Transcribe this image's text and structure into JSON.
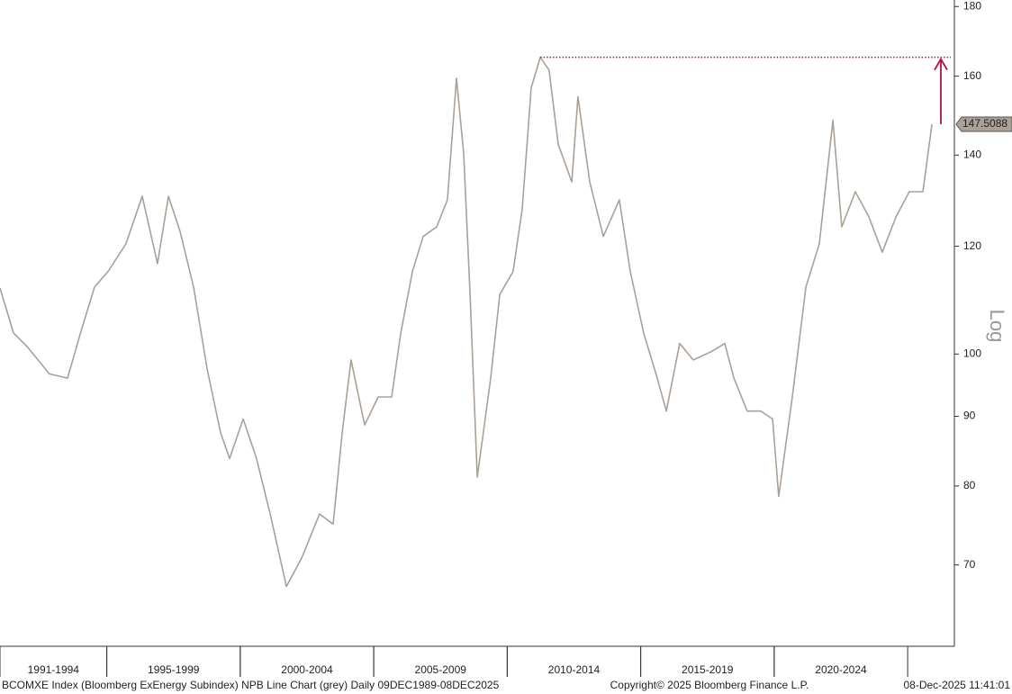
{
  "chart_data": {
    "type": "line",
    "log_scale": true,
    "y_axis_label": "Log",
    "series": [
      {
        "color": "#aaa096",
        "x": [
          1991.0,
          1991.51,
          1992.01,
          1992.85,
          1993.53,
          1994.04,
          1994.54,
          1995.05,
          1995.72,
          1996.33,
          1996.9,
          1997.31,
          1997.75,
          1998.25,
          1998.76,
          1999.26,
          1999.6,
          2000.11,
          2000.61,
          2001.12,
          2001.73,
          2002.3,
          2002.97,
          2003.48,
          2003.82,
          2004.15,
          2004.66,
          2005.17,
          2005.67,
          2006.01,
          2006.45,
          2006.85,
          2007.36,
          2007.76,
          2008.1,
          2008.37,
          2008.61,
          2008.88,
          2009.38,
          2009.72,
          2010.22,
          2010.56,
          2010.9,
          2011.24,
          2011.57,
          2011.91,
          2012.42,
          2012.65,
          2013.09,
          2013.6,
          2014.2,
          2014.61,
          2015.11,
          2015.62,
          2015.96,
          2016.46,
          2016.97,
          2017.64,
          2018.15,
          2018.49,
          2018.99,
          2019.5,
          2019.94,
          2020.17,
          2020.68,
          2021.19,
          2021.69,
          2022.2,
          2022.53,
          2023.04,
          2023.55,
          2024.05,
          2024.56,
          2025.06,
          2025.57,
          2025.91
        ],
        "values": [
          111.8,
          103.6,
          101.3,
          96.7,
          96,
          104,
          112,
          115,
          120.5,
          130.6,
          116.5,
          130.6,
          123,
          112,
          97.5,
          87.6,
          83.8,
          89.6,
          83.8,
          76.3,
          67.5,
          70.8,
          76.3,
          75,
          87.6,
          99,
          88.7,
          93,
          93,
          103.6,
          115,
          122,
          124,
          129.8,
          159.4,
          140.4,
          110.6,
          81.2,
          96,
          110.6,
          115,
          127.8,
          156.9,
          165.2,
          161.6,
          142.6,
          133.8,
          154.5,
          133.8,
          122,
          129.8,
          115,
          103.6,
          96,
          90.8,
          101.8,
          99,
          100.4,
          101.8,
          96,
          90.8,
          90.8,
          89.6,
          78.6,
          93,
          112,
          120.5,
          148.5,
          124,
          131.6,
          126.1,
          118.8,
          126.1,
          131.6,
          131.6,
          147.5088
        ]
      }
    ],
    "xlim": [
      1991,
      2026.75
    ],
    "ylim": [
      61,
      182
    ],
    "yticks": [
      70,
      80,
      90,
      100,
      120,
      140,
      160,
      180
    ],
    "periods": [
      {
        "label": "1991-1994",
        "start": 1991,
        "end": 1995
      },
      {
        "label": "1995-1999",
        "start": 1995,
        "end": 2000
      },
      {
        "label": "2000-2004",
        "start": 2000,
        "end": 2005
      },
      {
        "label": "2005-2009",
        "start": 2005,
        "end": 2010
      },
      {
        "label": "2010-2014",
        "start": 2010,
        "end": 2015
      },
      {
        "label": "2015-2019",
        "start": 2015,
        "end": 2020
      },
      {
        "label": "2020-2024",
        "start": 2020,
        "end": 2025
      }
    ],
    "annotation_color": "#b0104a",
    "footer": {
      "left": "BCOMXE Index (Bloomberg ExEnergy Subindex) NPB Line Chart (grey) Daily 09DEC1989-08DEC2025",
      "center": "Copyright© 2025 Bloomberg Finance L.P.",
      "right": "08-Dec-2025 11:41:01"
    }
  }
}
